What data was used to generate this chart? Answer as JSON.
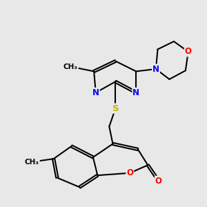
{
  "background_color": "#e8e8e8",
  "bond_color": "#000000",
  "bond_width": 1.5,
  "atom_colors": {
    "N": "#0000ff",
    "O": "#ff0000",
    "S": "#bbbb00",
    "C": "#000000"
  },
  "font_size": 8.5,
  "fig_width": 3.0,
  "fig_height": 3.0,
  "L": 0.68
}
